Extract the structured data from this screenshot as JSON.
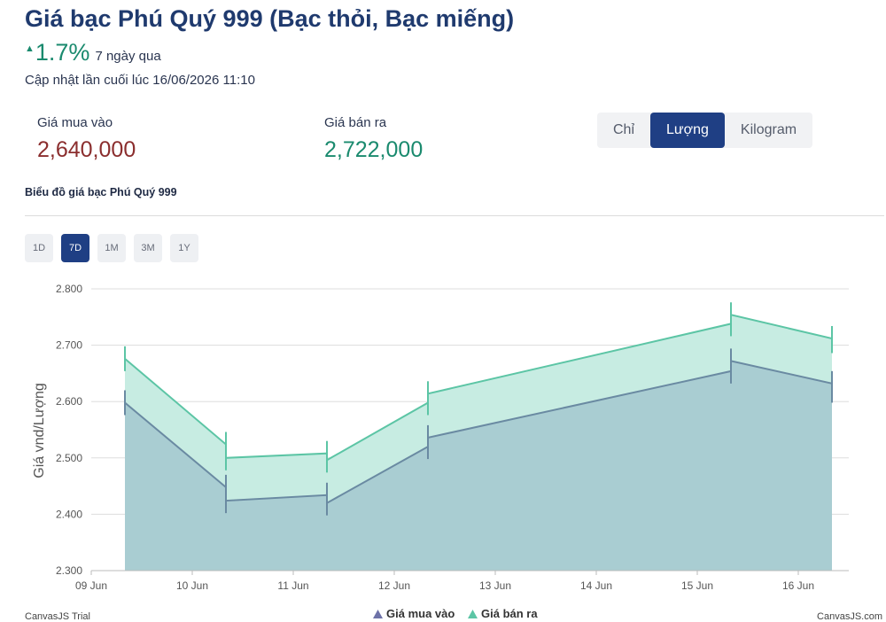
{
  "header": {
    "title": "Giá bạc Phú Quý 999 (Bạc thỏi, Bạc miếng)",
    "change_arrow": "▲",
    "change_pct": "1.7%",
    "change_period": "7 ngày qua",
    "updated": "Cập nhật lần cuối lúc 16/06/2026 11:10"
  },
  "prices": {
    "buy_label": "Giá mua vào",
    "buy_value": "2,640,000",
    "sell_label": "Giá bán ra",
    "sell_value": "2,722,000"
  },
  "unit_tabs": [
    {
      "label": "Chỉ",
      "active": false
    },
    {
      "label": "Lượng",
      "active": true
    },
    {
      "label": "Kilogram",
      "active": false
    }
  ],
  "chart_heading": "Biểu đồ giá bạc Phú Quý 999",
  "range_tabs": [
    {
      "label": "1D",
      "active": false
    },
    {
      "label": "7D",
      "active": true
    },
    {
      "label": "1M",
      "active": false
    },
    {
      "label": "3M",
      "active": false
    },
    {
      "label": "1Y",
      "active": false
    }
  ],
  "colors": {
    "buy_line": "#6a8aa2",
    "buy_fill": "#a9cdd2",
    "sell_line": "#5cc5a5",
    "sell_fill": "#c7ece2",
    "legend_buy": "#6e72a8",
    "legend_sell": "#5cc5a5",
    "grid": "#dddddd"
  },
  "chart_data": {
    "type": "area",
    "ylabel": "Giá vnd/Lượng",
    "y_tick_labels": [
      "2.300",
      "2.400",
      "2.500",
      "2.600",
      "2.700",
      "2.800"
    ],
    "y_ticks": [
      2300,
      2400,
      2500,
      2600,
      2700,
      2800
    ],
    "ylim": [
      2300,
      2800
    ],
    "x_tick_labels": [
      "09 Jun",
      "10 Jun",
      "11 Jun",
      "12 Jun",
      "13 Jun",
      "14 Jun",
      "15 Jun",
      "16 Jun"
    ],
    "x_ticks": [
      "2026-06-09",
      "2026-06-10",
      "2026-06-11",
      "2026-06-12",
      "2026-06-13",
      "2026-06-14",
      "2026-06-15",
      "2026-06-16"
    ],
    "x_range": [
      "2026-06-09T00:00",
      "2026-06-16T12:00"
    ],
    "grid": true,
    "legend_position": "bottom-center",
    "points": [
      "2026-06-09T08:00",
      "2026-06-10T08:00",
      "2026-06-11T08:00",
      "2026-06-12T08:00",
      "2026-06-15T08:00",
      "2026-06-16T08:00"
    ],
    "series": [
      {
        "name": "Giá mua vào",
        "values": [
          {
            "start": 2598,
            "end": 2448
          },
          {
            "start": 2424,
            "end": 2434
          },
          {
            "start": 2420,
            "end": 2520
          },
          {
            "start": 2536,
            "end": 2654
          },
          {
            "start": 2672,
            "end": 2632
          },
          {
            "start": 2620,
            "end": 2620
          }
        ]
      },
      {
        "name": "Giá bán ra",
        "values": [
          {
            "start": 2676,
            "end": 2524
          },
          {
            "start": 2500,
            "end": 2508
          },
          {
            "start": 2496,
            "end": 2598
          },
          {
            "start": 2614,
            "end": 2738
          },
          {
            "start": 2754,
            "end": 2712
          },
          {
            "start": 2708,
            "end": 2708
          }
        ]
      }
    ]
  },
  "legend": [
    {
      "label": "Giá mua vào"
    },
    {
      "label": "Giá bán ra"
    }
  ],
  "credits": {
    "left": "CanvasJS Trial",
    "right": "CanvasJS.com"
  }
}
